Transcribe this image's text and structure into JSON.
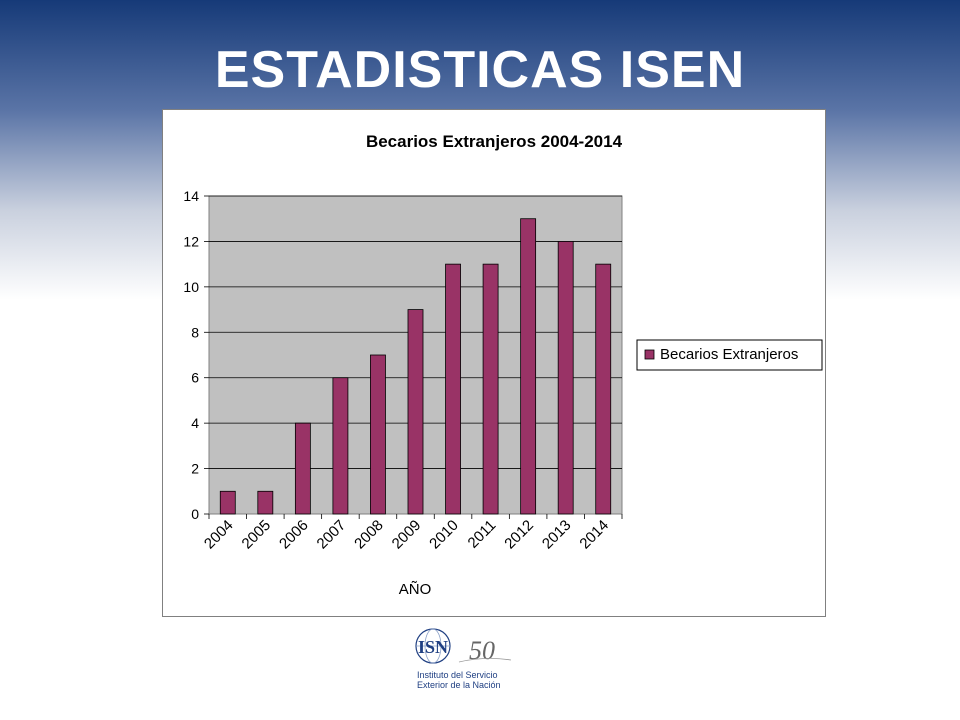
{
  "slide": {
    "title": "ESTADISTICAS ISEN"
  },
  "logo": {
    "monogram": "ISN",
    "anniversary": "50",
    "line1": "Instituto del Servicio",
    "line2": "Exterior de la Nación"
  },
  "chart_data": {
    "type": "bar",
    "title": "Becarios Extranjeros 2004-2014",
    "xlabel": "AÑO",
    "ylabel": "",
    "categories": [
      "2004",
      "2005",
      "2006",
      "2007",
      "2008",
      "2009",
      "2010",
      "2011",
      "2012",
      "2013",
      "2014"
    ],
    "series": [
      {
        "name": "Becarios Extranjeros",
        "values": [
          1,
          1,
          4,
          6,
          7,
          9,
          11,
          11,
          13,
          12,
          11
        ],
        "color": "#993366"
      }
    ],
    "ylim": [
      0,
      14
    ],
    "yticks": [
      0,
      2,
      4,
      6,
      8,
      10,
      12,
      14
    ],
    "grid": true,
    "plot_background": "#c0c0c0",
    "legend_position": "right"
  }
}
